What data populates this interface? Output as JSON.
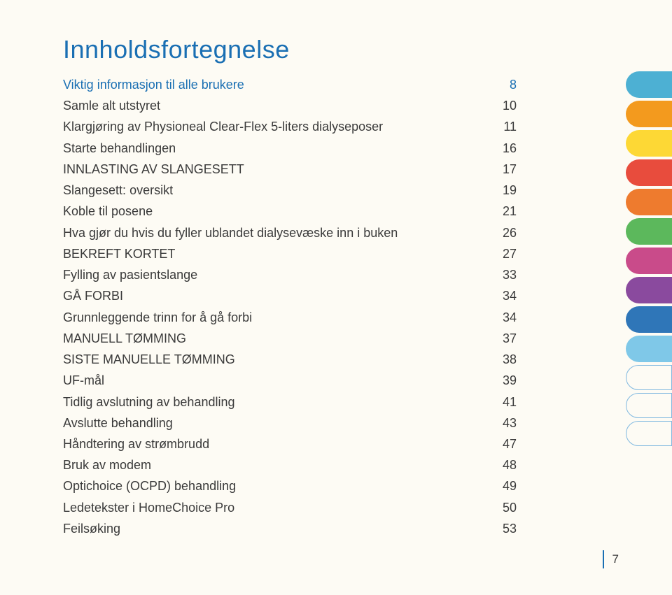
{
  "title": "Innholdsfortegnelse",
  "toc": [
    {
      "label": "Viktig informasjon til alle brukere",
      "page": "8",
      "bold": true
    },
    {
      "label": "Samle alt utstyret",
      "page": "10",
      "bold": false
    },
    {
      "label": "Klargjøring av Physioneal Clear-Flex 5-liters dialyseposer",
      "page": "11",
      "bold": false
    },
    {
      "label": "Starte behandlingen",
      "page": "16",
      "bold": false
    },
    {
      "label": "INNLASTING AV SLANGESETT",
      "page": "17",
      "bold": false
    },
    {
      "label": "Slangesett: oversikt",
      "page": "19",
      "bold": false
    },
    {
      "label": "Koble til posene",
      "page": "21",
      "bold": false
    },
    {
      "label": "Hva gjør du hvis du fyller ublandet dialysevæske inn i buken",
      "page": "26",
      "bold": false
    },
    {
      "label": "BEKREFT KORTET",
      "page": "27",
      "bold": false
    },
    {
      "label": "Fylling av pasientslange",
      "page": "33",
      "bold": false
    },
    {
      "label": "GÅ FORBI",
      "page": "34",
      "bold": false
    },
    {
      "label": "Grunnleggende trinn for å gå forbi",
      "page": "34",
      "bold": false
    },
    {
      "label": "MANUELL TØMMING",
      "page": "37",
      "bold": false
    },
    {
      "label": "SISTE MANUELLE TØMMING",
      "page": "38",
      "bold": false
    },
    {
      "label": "UF-mål",
      "page": "39",
      "bold": false
    },
    {
      "label": "Tidlig avslutning av behandling",
      "page": "41",
      "bold": false
    },
    {
      "label": "Avslutte behandling",
      "page": "43",
      "bold": false
    },
    {
      "label": "Håndtering av strømbrudd",
      "page": "47",
      "bold": false
    },
    {
      "label": "Bruk av modem",
      "page": "48",
      "bold": false
    },
    {
      "label": "Optichoice (OCPD) behandling",
      "page": "49",
      "bold": false
    },
    {
      "label": "Ledetekster i HomeChoice Pro",
      "page": "50",
      "bold": false
    },
    {
      "label": "Feilsøking",
      "page": "53",
      "bold": false
    }
  ],
  "tabs": [
    {
      "type": "solid",
      "color": "#4db0d3"
    },
    {
      "type": "solid",
      "color": "#f39a1e"
    },
    {
      "type": "solid",
      "color": "#fdd835"
    },
    {
      "type": "solid",
      "color": "#e84c3d"
    },
    {
      "type": "solid",
      "color": "#ee7b2e"
    },
    {
      "type": "solid",
      "color": "#5cb85c"
    },
    {
      "type": "solid",
      "color": "#c94b8a"
    },
    {
      "type": "solid",
      "color": "#8a4a9e"
    },
    {
      "type": "solid",
      "color": "#2f76b8"
    },
    {
      "type": "solid",
      "color": "#7fc8e8"
    },
    {
      "type": "outline",
      "color": "#7fb8e0"
    },
    {
      "type": "outline",
      "color": "#7fb8e0"
    },
    {
      "type": "outline",
      "color": "#7fb8e0"
    }
  ],
  "footer_page": "7",
  "colors": {
    "background": "#fdfbf4",
    "title": "#1a6fb3",
    "text": "#3a3a3a",
    "accent": "#1a6fb3"
  },
  "typography": {
    "title_fontsize": 36,
    "body_fontsize": 18,
    "footer_fontsize": 17
  }
}
